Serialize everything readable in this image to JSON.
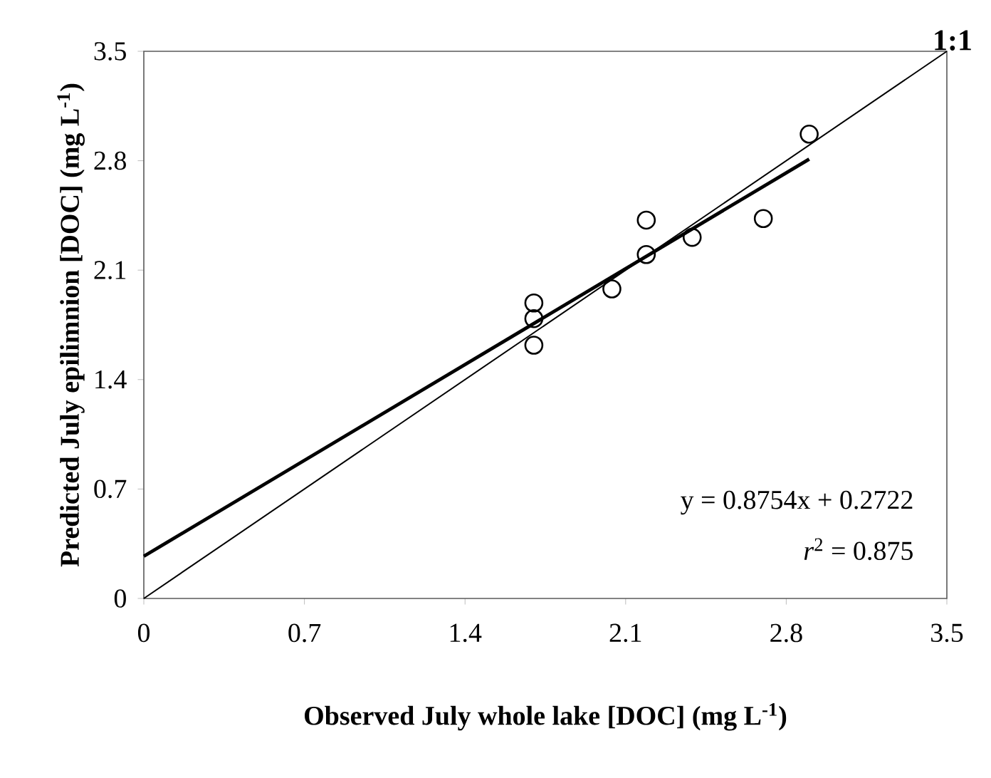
{
  "chart_data": {
    "type": "scatter",
    "xlabel": "Observed July whole lake [DOC] (mg L$^{-1}$)",
    "ylabel": "Predicted July epilimnion [DOC] (mg L$^{-1}$)",
    "xlim": [
      0,
      3.5
    ],
    "ylim": [
      0,
      3.5
    ],
    "xticks": [
      0,
      {
        "value": 0.7,
        "label": "0.7"
      },
      {
        "value": 1.4,
        "label": "1.4"
      },
      {
        "value": 2.1,
        "label": "2.1"
      },
      {
        "value": 2.8,
        "label": "2.8"
      },
      {
        "value": 3.5,
        "label": "3.5"
      }
    ],
    "yticks": [
      0,
      {
        "value": 0.7,
        "label": "0.7"
      },
      {
        "value": 1.4,
        "label": "1.4"
      },
      {
        "value": 2.1,
        "label": "2.1"
      },
      {
        "value": 2.8,
        "label": "2.8"
      },
      {
        "value": 3.5,
        "label": "3.5"
      }
    ],
    "grid": false,
    "series": [
      {
        "color": "#000000",
        "marker": "circle",
        "x": [
          1.7,
          1.7,
          1.7,
          2.04,
          2.19,
          2.19,
          2.39,
          2.7,
          2.9
        ],
        "values": [
          1.89,
          1.79,
          1.62,
          1.98,
          2.42,
          2.2,
          2.31,
          2.43,
          2.97
        ]
      },
      {
        "type": "line",
        "color": "#000000",
        "marker": "none",
        "line_style": "solid",
        "x": [
          0,
          2.9
        ],
        "values": [
          0.27,
          2.81
        ]
      },
      {
        "type": "line",
        "color": "#000000",
        "marker": "none",
        "line_style": "solid",
        "x": [
          0,
          3.5
        ],
        "values": [
          0,
          3.5
        ]
      }
    ],
    "annotations": [
      "y = 0.8754x + 0.2722",
      "*r*$^{2}$ = 0.875",
      {
        "text": "1:1",
        "x": 3.5,
        "y": 3.5
      }
    ]
  }
}
